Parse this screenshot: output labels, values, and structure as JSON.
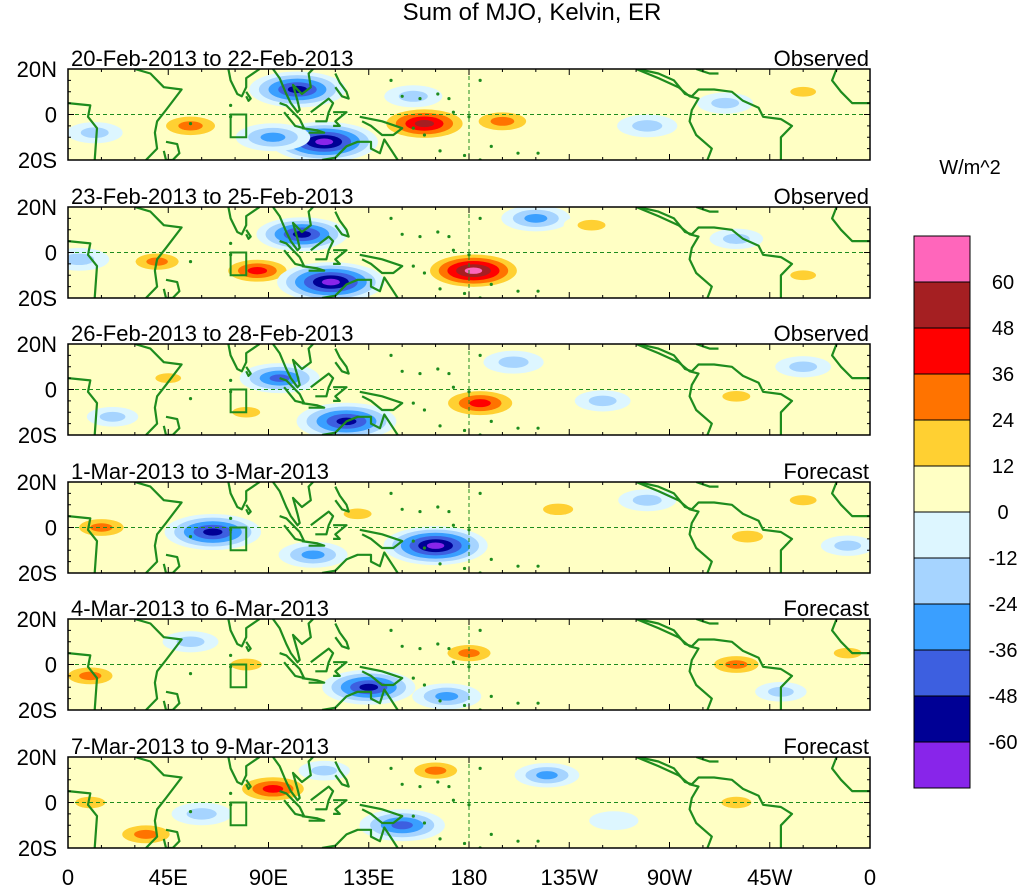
{
  "chart_data": {
    "type": "heatmap",
    "title": "Sum of MJO, Kelvin, ER",
    "colorbar": {
      "units": "W/m^2",
      "levels": [
        "60",
        "48",
        "36",
        "24",
        "12",
        "0",
        "-12",
        "-24",
        "-36",
        "-48",
        "-60"
      ],
      "bins": [
        {
          "range": [
            60,
            72
          ],
          "color": "#ff66bb"
        },
        {
          "range": [
            48,
            60
          ],
          "color": "#a51f22"
        },
        {
          "range": [
            36,
            48
          ],
          "color": "#ff0000"
        },
        {
          "range": [
            24,
            36
          ],
          "color": "#ff7300"
        },
        {
          "range": [
            12,
            24
          ],
          "color": "#ffd032"
        },
        {
          "range": [
            0,
            12
          ],
          "color": "#ffffc4"
        },
        {
          "range": [
            -12,
            0
          ],
          "color": "#ddf6ff"
        },
        {
          "range": [
            -24,
            -12
          ],
          "color": "#a6d4ff"
        },
        {
          "range": [
            -36,
            -24
          ],
          "color": "#3a9fff"
        },
        {
          "range": [
            -48,
            -36
          ],
          "color": "#3d5fe0"
        },
        {
          "range": [
            -60,
            -48
          ],
          "color": "#000095"
        },
        {
          "range": [
            -72,
            -60
          ],
          "color": "#8825ea"
        }
      ]
    },
    "lon_range": [
      0,
      360
    ],
    "lat_range": [
      -20,
      20
    ],
    "x_ticks": [
      {
        "lon": 0,
        "label": "0"
      },
      {
        "lon": 45,
        "label": "45E"
      },
      {
        "lon": 90,
        "label": "90E"
      },
      {
        "lon": 135,
        "label": "135E"
      },
      {
        "lon": 180,
        "label": "180"
      },
      {
        "lon": 225,
        "label": "135W"
      },
      {
        "lon": 270,
        "label": "90W"
      },
      {
        "lon": 315,
        "label": "45W"
      },
      {
        "lon": 360,
        "label": "0"
      }
    ],
    "y_ticks": [
      {
        "lat": 20,
        "label": "20N"
      },
      {
        "lat": 0,
        "label": "0"
      },
      {
        "lat": -20,
        "label": "20S"
      }
    ],
    "panels": [
      {
        "period": "20-Feb-2013 to 22-Feb-2013",
        "kind": "Observed",
        "features": [
          {
            "lon": 55,
            "lat": -5,
            "value": 34
          },
          {
            "lon": 103,
            "lat": 11,
            "value": -55
          },
          {
            "lon": 115,
            "lat": -12,
            "value": -65
          },
          {
            "lon": 92,
            "lat": -10,
            "value": -35
          },
          {
            "lon": 160,
            "lat": -4,
            "value": 54
          },
          {
            "lon": 195,
            "lat": -3,
            "value": 32
          },
          {
            "lon": 155,
            "lat": 8,
            "value": -20
          },
          {
            "lon": 12,
            "lat": -8,
            "value": -18
          },
          {
            "lon": 260,
            "lat": -5,
            "value": -22
          },
          {
            "lon": 295,
            "lat": 5,
            "value": -18
          },
          {
            "lon": 330,
            "lat": 10,
            "value": 14
          },
          {
            "lon": 235,
            "lat": 12,
            "value": 10
          }
        ]
      },
      {
        "period": "23-Feb-2013 to 25-Feb-2013",
        "kind": "Observed",
        "features": [
          {
            "lon": 40,
            "lat": -4,
            "value": 26
          },
          {
            "lon": 85,
            "lat": -8,
            "value": 38
          },
          {
            "lon": 105,
            "lat": 8,
            "value": -50
          },
          {
            "lon": 118,
            "lat": -13,
            "value": -65
          },
          {
            "lon": 182,
            "lat": -8,
            "value": 62
          },
          {
            "lon": 210,
            "lat": 15,
            "value": -30
          },
          {
            "lon": 235,
            "lat": 12,
            "value": 18
          },
          {
            "lon": 5,
            "lat": -3,
            "value": -22
          },
          {
            "lon": 300,
            "lat": 6,
            "value": -16
          },
          {
            "lon": 330,
            "lat": -10,
            "value": 14
          },
          {
            "lon": 150,
            "lat": 8,
            "value": 10
          }
        ]
      },
      {
        "period": "26-Feb-2013 to 28-Feb-2013",
        "kind": "Observed",
        "features": [
          {
            "lon": 95,
            "lat": 5,
            "value": -40
          },
          {
            "lon": 125,
            "lat": -14,
            "value": -58
          },
          {
            "lon": 185,
            "lat": -6,
            "value": 45
          },
          {
            "lon": 45,
            "lat": 5,
            "value": 14
          },
          {
            "lon": 80,
            "lat": -10,
            "value": 18
          },
          {
            "lon": 200,
            "lat": 12,
            "value": -22
          },
          {
            "lon": 240,
            "lat": -5,
            "value": -18
          },
          {
            "lon": 300,
            "lat": -3,
            "value": 18
          },
          {
            "lon": 330,
            "lat": 10,
            "value": -18
          },
          {
            "lon": 20,
            "lat": -12,
            "value": -14
          }
        ]
      },
      {
        "period": "1-Mar-2013 to 3-Mar-2013",
        "kind": "Forecast",
        "features": [
          {
            "lon": 15,
            "lat": 0,
            "value": 28
          },
          {
            "lon": 65,
            "lat": -2,
            "value": -55
          },
          {
            "lon": 130,
            "lat": 6,
            "value": 18
          },
          {
            "lon": 165,
            "lat": -8,
            "value": -62
          },
          {
            "lon": 220,
            "lat": 8,
            "value": 22
          },
          {
            "lon": 305,
            "lat": -4,
            "value": 24
          },
          {
            "lon": 110,
            "lat": -12,
            "value": -30
          },
          {
            "lon": 260,
            "lat": 12,
            "value": -20
          },
          {
            "lon": 330,
            "lat": 12,
            "value": 16
          },
          {
            "lon": 350,
            "lat": -8,
            "value": -16
          }
        ]
      },
      {
        "period": "4-Mar-2013 to 6-Mar-2013",
        "kind": "Forecast",
        "features": [
          {
            "lon": 10,
            "lat": -5,
            "value": 28
          },
          {
            "lon": 80,
            "lat": 0,
            "value": 24
          },
          {
            "lon": 135,
            "lat": -10,
            "value": -52
          },
          {
            "lon": 170,
            "lat": -14,
            "value": -30
          },
          {
            "lon": 180,
            "lat": 5,
            "value": 26
          },
          {
            "lon": 300,
            "lat": 0,
            "value": 28
          },
          {
            "lon": 55,
            "lat": 10,
            "value": -18
          },
          {
            "lon": 240,
            "lat": -10,
            "value": 12
          },
          {
            "lon": 320,
            "lat": -12,
            "value": -14
          },
          {
            "lon": 350,
            "lat": 5,
            "value": 18
          }
        ]
      },
      {
        "period": "7-Mar-2013 to 9-Mar-2013",
        "kind": "Forecast",
        "features": [
          {
            "lon": 92,
            "lat": 6,
            "value": 42
          },
          {
            "lon": 165,
            "lat": 14,
            "value": 26
          },
          {
            "lon": 150,
            "lat": -10,
            "value": -45
          },
          {
            "lon": 10,
            "lat": 0,
            "value": 22
          },
          {
            "lon": 35,
            "lat": -14,
            "value": 32
          },
          {
            "lon": 60,
            "lat": -5,
            "value": -22
          },
          {
            "lon": 300,
            "lat": 0,
            "value": 22
          },
          {
            "lon": 215,
            "lat": 12,
            "value": -26
          },
          {
            "lon": 115,
            "lat": 14,
            "value": -14
          },
          {
            "lon": 245,
            "lat": -8,
            "value": -12
          }
        ]
      }
    ]
  },
  "colors": {
    "coastline": "#1e8c1e",
    "frame": "#000000",
    "equator_line": "#1e8c1e"
  }
}
